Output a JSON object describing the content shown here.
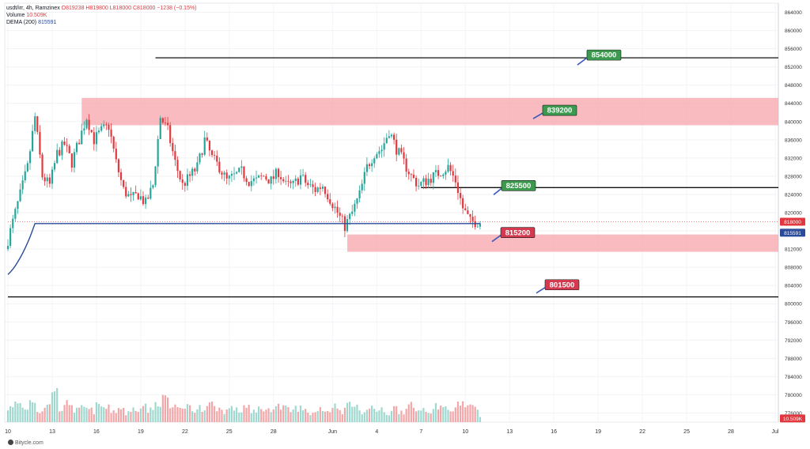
{
  "header": {
    "symbol": "usdt/irr, 4h, Ramzinex",
    "ohlc": "O819238 H819800 L818000 C818000 −1238 (−0.15%)",
    "volume_label": "Volume",
    "volume_value": "10.509K",
    "dema_label": "DEMA (200)",
    "dema_value": "815591"
  },
  "credit": "Bitycle.com",
  "colors": {
    "up": "#26a69a",
    "down": "#e0383e",
    "up_volume": "#9fd8cf",
    "down_volume": "#f3a6a8",
    "zone": "#f7a8ad",
    "dema": "#2a4a9a",
    "label_green": "#3c9a4e",
    "label_red": "#d43a4f"
  },
  "chart_data": {
    "type": "candlestick",
    "y_axis": {
      "range": [
        774000,
        866000
      ],
      "ticks": [
        776000,
        780000,
        784000,
        788000,
        792000,
        796000,
        800000,
        804000,
        808000,
        812000,
        816000,
        820000,
        824000,
        828000,
        832000,
        836000,
        840000,
        844000,
        848000,
        852000,
        856000,
        860000,
        864000
      ],
      "tick_labels": [
        "776000",
        "780000",
        "784000",
        "788000",
        "792000",
        "796000",
        "800000",
        "804000",
        "808000",
        "812000",
        "816000",
        "820000",
        "824000",
        "828000",
        "832000",
        "836000",
        "840000",
        "844000",
        "848000",
        "852000",
        "856000",
        "860000",
        "864000"
      ]
    },
    "x_axis": {
      "tick_labels": [
        "10",
        "13",
        "16",
        "19",
        "22",
        "25",
        "28",
        "Jun",
        "4",
        "7",
        "10",
        "13",
        "16",
        "19",
        "22",
        "25",
        "28",
        "Jul"
      ],
      "tick_dates": [
        "2024-05-10",
        "2024-05-13",
        "2024-05-16",
        "2024-05-19",
        "2024-05-22",
        "2024-05-25",
        "2024-05-28",
        "2024-06-01",
        "2024-06-04",
        "2024-06-07",
        "2024-06-10",
        "2024-06-13",
        "2024-06-16",
        "2024-06-19",
        "2024-06-22",
        "2024-06-25",
        "2024-06-28",
        "2024-07-01"
      ],
      "bar_interval": "4h"
    },
    "last_price_label": "818000",
    "dema_price_label": "815591",
    "volume_price_label": "10.509K",
    "levels": [
      {
        "value": 854000,
        "label": "854000",
        "kind": "resistance",
        "start_date": "2024-05-20"
      },
      {
        "value": 825500,
        "label": "825500",
        "kind": "resistance",
        "start_date": "2024-06-07"
      },
      {
        "value": 801500,
        "label": "801500",
        "kind": "support",
        "start_date": "2024-05-10"
      }
    ],
    "zones": [
      {
        "from": 839200,
        "to": 845200,
        "label": "839200",
        "start_date": "2024-05-15"
      },
      {
        "from": 811400,
        "to": 815200,
        "label": "815200",
        "start_date": "2024-06-02"
      }
    ],
    "price_path": [
      [
        "2024-05-10",
        812000
      ],
      [
        "2024-05-10",
        818000
      ],
      [
        "2024-05-11",
        824000
      ],
      [
        "2024-05-11",
        830000
      ],
      [
        "2024-05-12",
        841000
      ],
      [
        "2024-05-12",
        828000
      ],
      [
        "2024-05-13",
        826000
      ],
      [
        "2024-05-13",
        833000
      ],
      [
        "2024-05-14",
        835000
      ],
      [
        "2024-05-14",
        831000
      ],
      [
        "2024-05-15",
        836000
      ],
      [
        "2024-05-15",
        841000
      ],
      [
        "2024-05-16",
        836000
      ],
      [
        "2024-05-16",
        838000
      ],
      [
        "2024-05-17",
        839000
      ],
      [
        "2024-05-17",
        831000
      ],
      [
        "2024-05-18",
        825000
      ],
      [
        "2024-05-18",
        823000
      ],
      [
        "2024-05-19",
        824000
      ],
      [
        "2024-05-19",
        822000
      ],
      [
        "2024-05-20",
        826000
      ],
      [
        "2024-05-20",
        841000
      ],
      [
        "2024-05-21",
        838000
      ],
      [
        "2024-05-21",
        831000
      ],
      [
        "2024-05-22",
        826000
      ],
      [
        "2024-05-22",
        828000
      ],
      [
        "2024-05-23",
        830000
      ],
      [
        "2024-05-23",
        836000
      ],
      [
        "2024-05-24",
        832000
      ],
      [
        "2024-05-24",
        830000
      ],
      [
        "2024-05-25",
        827000
      ],
      [
        "2024-05-25",
        828000
      ],
      [
        "2024-05-26",
        829000
      ],
      [
        "2024-05-26",
        827000
      ],
      [
        "2024-05-27",
        827000
      ],
      [
        "2024-05-27",
        828000
      ],
      [
        "2024-05-28",
        827000
      ],
      [
        "2024-05-28",
        829000
      ],
      [
        "2024-05-29",
        826000
      ],
      [
        "2024-05-29",
        826000
      ],
      [
        "2024-05-30",
        828000
      ],
      [
        "2024-05-30",
        826000
      ],
      [
        "2024-05-31",
        825000
      ],
      [
        "2024-05-31",
        826000
      ],
      [
        "2024-06-01",
        823000
      ],
      [
        "2024-06-01",
        820000
      ],
      [
        "2024-06-02",
        817000
      ],
      [
        "2024-06-02",
        820000
      ],
      [
        "2024-06-03",
        824000
      ],
      [
        "2024-06-03",
        830000
      ],
      [
        "2024-06-04",
        833000
      ],
      [
        "2024-06-04",
        834000
      ],
      [
        "2024-06-05",
        838000
      ],
      [
        "2024-06-05",
        834000
      ],
      [
        "2024-06-06",
        831000
      ],
      [
        "2024-06-06",
        828000
      ],
      [
        "2024-06-07",
        826000
      ],
      [
        "2024-06-07",
        827000
      ],
      [
        "2024-06-08",
        828000
      ],
      [
        "2024-06-08",
        829000
      ],
      [
        "2024-06-09",
        830000
      ],
      [
        "2024-06-09",
        827000
      ],
      [
        "2024-06-10",
        821000
      ],
      [
        "2024-06-10",
        818000
      ],
      [
        "2024-06-11",
        818000
      ]
    ],
    "volume_profile": [
      4,
      6,
      4,
      7,
      3,
      5,
      11,
      4,
      6,
      3,
      4,
      3,
      5,
      4,
      3,
      4,
      2,
      4,
      5,
      3,
      6,
      8,
      4,
      3,
      5,
      3,
      4,
      6,
      4,
      3,
      4,
      3,
      5,
      2,
      4,
      3,
      5,
      4,
      3,
      4,
      3,
      2,
      4,
      3,
      5,
      3,
      6,
      4,
      3,
      4,
      3,
      2,
      4,
      3,
      5,
      3,
      4,
      3,
      5,
      4,
      3,
      6,
      5,
      4,
      2
    ]
  }
}
